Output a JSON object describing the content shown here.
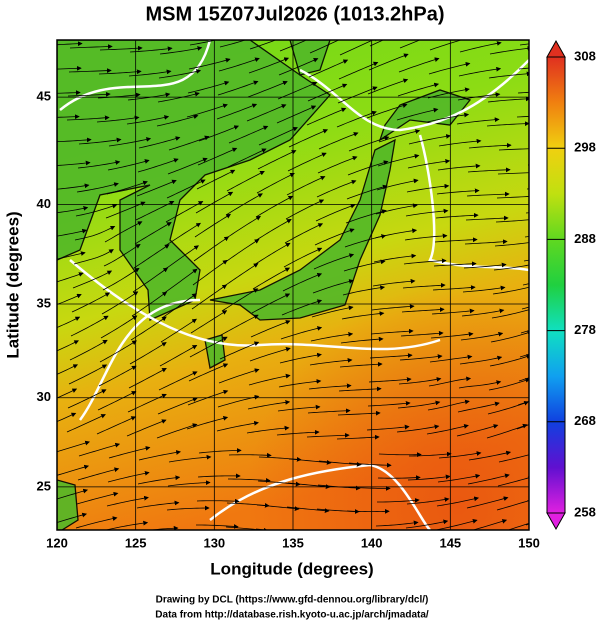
{
  "chart_data": {
    "type": "map",
    "title": "MSM 15Z07Jul2026 (1013.2hPa)",
    "x_label": "Longitude (degrees)",
    "y_label": "Latitude  (degrees)",
    "projection": "mercator",
    "xlim": [
      120,
      150
    ],
    "ylim": [
      22.5,
      47.5
    ],
    "xticks": [
      120,
      125,
      130,
      135,
      140,
      145,
      150
    ],
    "yticks": [
      25,
      30,
      35,
      40,
      45
    ],
    "grid": true,
    "colorbar": {
      "lim": [
        258,
        308
      ],
      "ticks": [
        258,
        268,
        278,
        288,
        298,
        308
      ],
      "colors": [
        "#e020e0",
        "#6010d0",
        "#1040e0",
        "#10a0f0",
        "#10e0c0",
        "#20d040",
        "#60d820",
        "#c0e010",
        "#f0d010",
        "#f08010",
        "#e03020"
      ]
    },
    "credits": [
      "Drawing by DCL (https://www.gfd-dennou.org/library/dcl/)",
      "Data from http://database.rish.kyoto-u.ac.jp/arch/jmadata/"
    ]
  }
}
